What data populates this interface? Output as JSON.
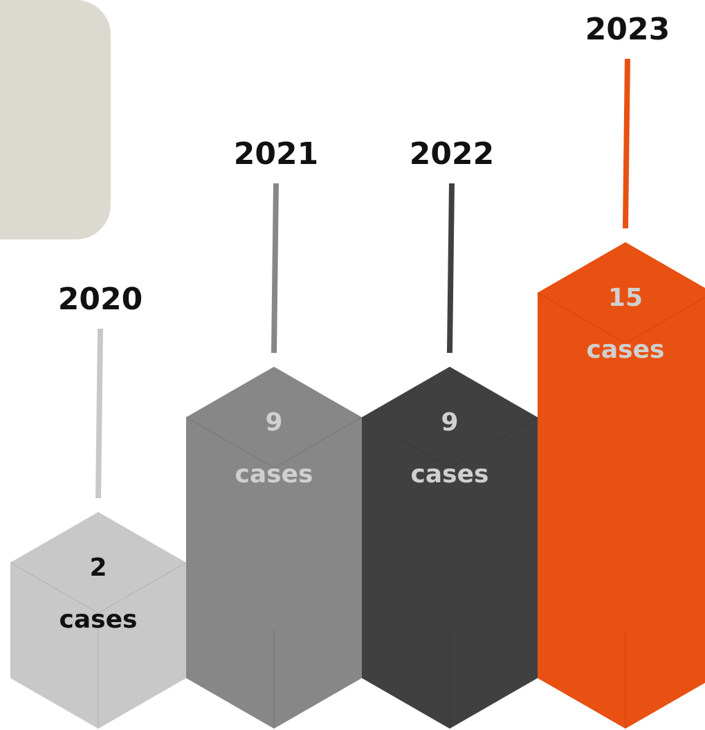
{
  "chart_data": {
    "type": "bar",
    "categories": [
      "2020",
      "2021",
      "2022",
      "2023"
    ],
    "values": [
      2,
      9,
      9,
      15
    ],
    "colors": [
      "#c8c8c8",
      "#878787",
      "#404040",
      "#e85112"
    ],
    "value_suffix": "cases"
  }
}
